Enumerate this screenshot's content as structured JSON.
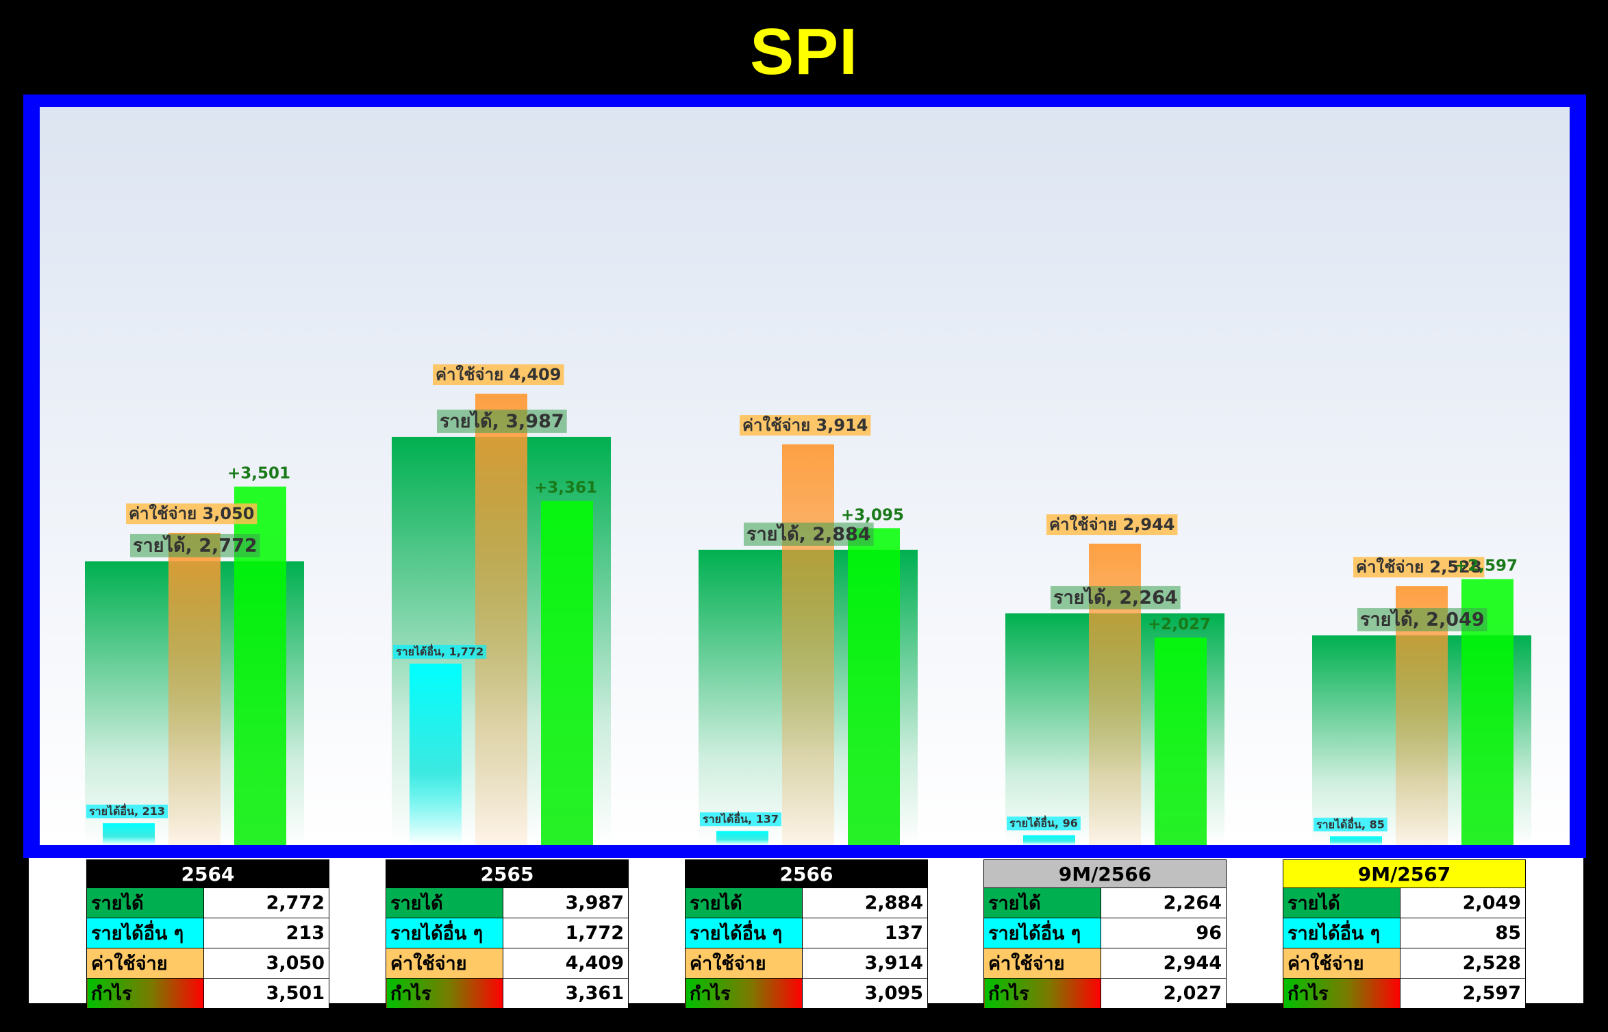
{
  "title": "SPI",
  "colors": {
    "title": "#ffff00",
    "frame": "#0000ff",
    "revenue": "#00b050",
    "other_income": "#00ffff",
    "expense": "#ff9933",
    "profit": "#00ff00",
    "profit_label": "#1a7a1a"
  },
  "chart_data": {
    "type": "bar",
    "categories": [
      "2564",
      "2565",
      "2566",
      "9M/2566",
      "9M/2567"
    ],
    "series": [
      {
        "name": "รายได้",
        "values": [
          2772,
          3987,
          2884,
          2264,
          2049
        ]
      },
      {
        "name": "รายได้อื่น",
        "values": [
          213,
          1772,
          137,
          96,
          85
        ]
      },
      {
        "name": "ค่าใช้จ่าย",
        "values": [
          3050,
          4409,
          3914,
          2944,
          2528
        ]
      },
      {
        "name": "กำไร",
        "values": [
          3501,
          3361,
          3095,
          2027,
          2597
        ]
      }
    ],
    "data_labels": {
      "revenue": [
        "รายได้, 2,772",
        "รายได้, 3,987",
        "รายได้, 2,884",
        "รายได้, 2,264",
        "รายได้, 2,049"
      ],
      "other_income": [
        "รายได้อื่น, 213",
        "รายได้อื่น, 1,772",
        "รายได้อื่น, 137",
        "รายได้อื่น, 96",
        "รายได้อื่น, 85"
      ],
      "expense": [
        "ค่าใช้จ่าย 3,050",
        "ค่าใช้จ่าย 4,409",
        "ค่าใช้จ่าย 3,914",
        "ค่าใช้จ่าย 2,944",
        "ค่าใช้จ่าย 2,528"
      ],
      "profit": [
        "+3,501",
        "+3,361",
        "+3,095",
        "+2,027",
        "+2,597"
      ]
    },
    "ylim": [
      0,
      4500
    ],
    "grid": false,
    "legend": "none"
  },
  "tables": [
    {
      "header": "2564",
      "header_bg": "#000000",
      "header_color": "#ffffff",
      "rows": [
        [
          "รายได้",
          "2,772"
        ],
        [
          "รายได้อื่น ๆ",
          "213"
        ],
        [
          "ค่าใช้จ่าย",
          "3,050"
        ],
        [
          "กำไร",
          "3,501"
        ]
      ]
    },
    {
      "header": "2565",
      "header_bg": "#000000",
      "header_color": "#ffffff",
      "rows": [
        [
          "รายได้",
          "3,987"
        ],
        [
          "รายได้อื่น ๆ",
          "1,772"
        ],
        [
          "ค่าใช้จ่าย",
          "4,409"
        ],
        [
          "กำไร",
          "3,361"
        ]
      ]
    },
    {
      "header": "2566",
      "header_bg": "#000000",
      "header_color": "#ffffff",
      "rows": [
        [
          "รายได้",
          "2,884"
        ],
        [
          "รายได้อื่น ๆ",
          "137"
        ],
        [
          "ค่าใช้จ่าย",
          "3,914"
        ],
        [
          "กำไร",
          "3,095"
        ]
      ]
    },
    {
      "header": "9M/2566",
      "header_bg": "#c0c0c0",
      "header_color": "#000000",
      "rows": [
        [
          "รายได้",
          "2,264"
        ],
        [
          "รายได้อื่น ๆ",
          "96"
        ],
        [
          "ค่าใช้จ่าย",
          "2,944"
        ],
        [
          "กำไร",
          "2,027"
        ]
      ]
    },
    {
      "header": "9M/2567",
      "header_bg": "#ffff00",
      "header_color": "#000000",
      "rows": [
        [
          "รายได้",
          "2,049"
        ],
        [
          "รายได้อื่น ๆ",
          "85"
        ],
        [
          "ค่าใช้จ่าย",
          "2,528"
        ],
        [
          "กำไร",
          "2,597"
        ]
      ]
    }
  ]
}
